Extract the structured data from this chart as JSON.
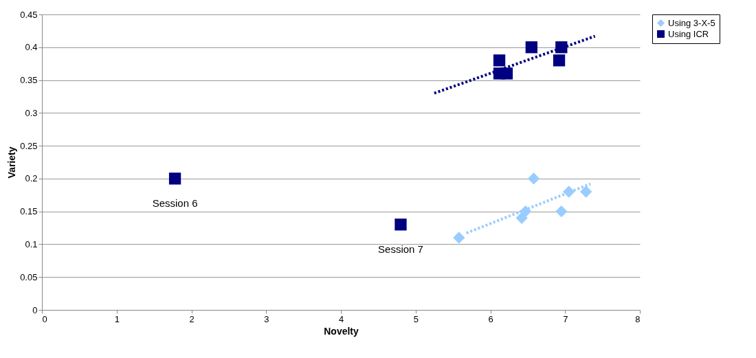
{
  "chart_data": {
    "type": "scatter",
    "xlabel": "Novelty",
    "ylabel": "Variety",
    "xlim": [
      0,
      8
    ],
    "xticks": [
      0,
      1,
      2,
      3,
      4,
      5,
      6,
      7,
      8
    ],
    "ylim": [
      0,
      0.45
    ],
    "yticks": [
      0,
      0.05,
      0.1,
      0.15,
      0.2,
      0.25,
      0.3,
      0.35,
      0.4,
      0.45
    ],
    "grid": "y",
    "legend": "right",
    "series": [
      {
        "name": "Using 3-X-5",
        "color": "#99ccff",
        "marker": "diamond",
        "x": [
          5.58,
          6.42,
          6.47,
          6.58,
          6.95,
          7.05,
          7.28
        ],
        "values": [
          0.11,
          0.14,
          0.15,
          0.2,
          0.15,
          0.18,
          0.18
        ]
      },
      {
        "name": "Using ICR",
        "color": "#000080",
        "marker": "square",
        "x": [
          1.78,
          4.8,
          6.12,
          6.12,
          6.22,
          6.55,
          6.92,
          6.95
        ],
        "values": [
          0.2,
          0.13,
          0.38,
          0.36,
          0.36,
          0.4,
          0.38,
          0.4
        ]
      },
      {
        "type": "line",
        "color": "#99ccff",
        "line_style": "dotted",
        "x": [
          5.68,
          7.34
        ],
        "values": [
          0.117,
          0.192
        ]
      },
      {
        "type": "line",
        "color": "#000080",
        "line_style": "dotted",
        "x": [
          5.25,
          7.4
        ],
        "values": [
          0.33,
          0.417
        ]
      }
    ],
    "annotations": [
      {
        "text": "Session 6",
        "x": 1.78,
        "y": 0.2
      },
      {
        "text": "Session 7",
        "x": 4.8,
        "y": 0.13
      }
    ]
  }
}
